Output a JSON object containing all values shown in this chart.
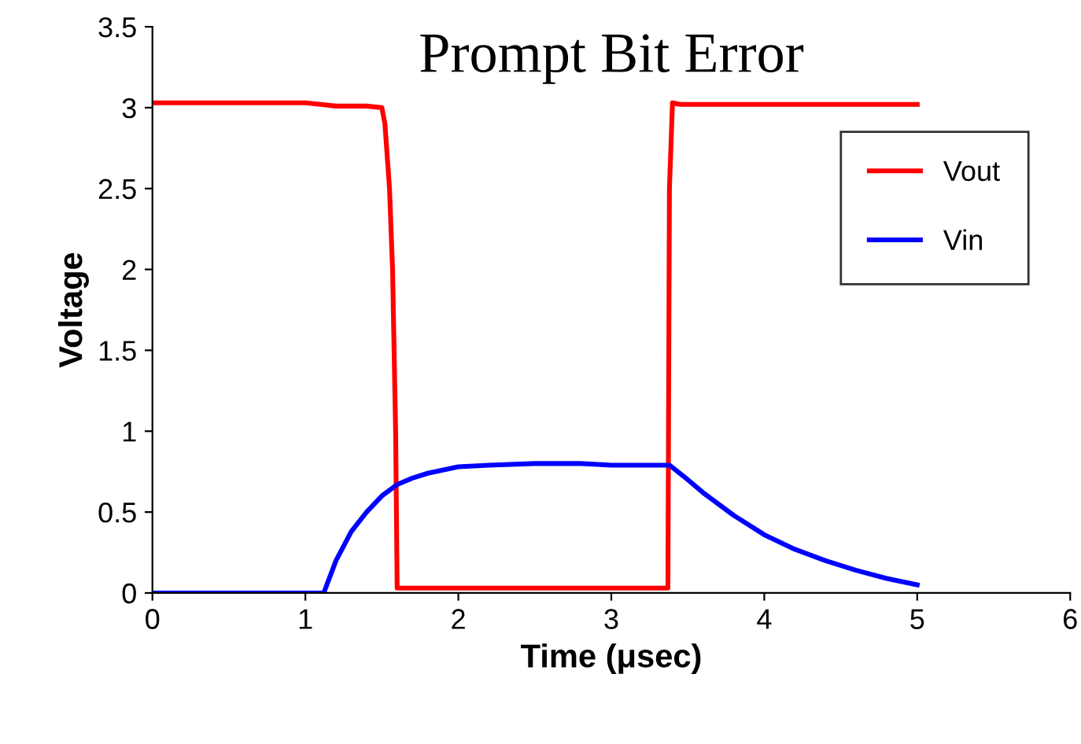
{
  "chart_data": {
    "type": "line",
    "title": "Prompt Bit Error",
    "xlabel": "Time (μsec)",
    "ylabel": "Voltage",
    "xlim": [
      0,
      6
    ],
    "xticks": [
      0,
      1,
      2,
      3,
      4,
      5,
      6
    ],
    "ylim": [
      0,
      3.5
    ],
    "yticks": [
      0,
      0.5,
      1,
      1.5,
      2,
      2.5,
      3,
      3.5
    ],
    "grid": false,
    "legend": "right",
    "marker": "none",
    "line_style": "solid",
    "series": [
      {
        "name": "Vout",
        "color": "#ff0000",
        "x": [
          0,
          0.5,
          1.0,
          1.1,
          1.2,
          1.4,
          1.5,
          1.52,
          1.55,
          1.57,
          1.59,
          1.6,
          1.62,
          2.0,
          2.5,
          3.0,
          3.37,
          3.38,
          3.4,
          3.45,
          4.0,
          4.5,
          5.0
        ],
        "values": [
          3.03,
          3.03,
          3.03,
          3.02,
          3.01,
          3.01,
          3.0,
          2.9,
          2.5,
          2.0,
          1.0,
          0.03,
          0.03,
          0.03,
          0.03,
          0.03,
          0.03,
          2.5,
          3.03,
          3.02,
          3.02,
          3.02,
          3.02
        ]
      },
      {
        "name": "Vin",
        "color": "#0000ff",
        "x": [
          0,
          0.5,
          1.0,
          1.12,
          1.2,
          1.3,
          1.4,
          1.5,
          1.6,
          1.7,
          1.8,
          2.0,
          2.2,
          2.5,
          2.8,
          3.0,
          3.2,
          3.38,
          3.5,
          3.6,
          3.8,
          4.0,
          4.2,
          4.4,
          4.6,
          4.8,
          5.0
        ],
        "values": [
          0,
          0,
          0,
          0,
          0.2,
          0.38,
          0.5,
          0.6,
          0.67,
          0.71,
          0.74,
          0.78,
          0.79,
          0.8,
          0.8,
          0.79,
          0.79,
          0.79,
          0.7,
          0.62,
          0.48,
          0.36,
          0.27,
          0.2,
          0.14,
          0.09,
          0.05
        ]
      }
    ]
  }
}
